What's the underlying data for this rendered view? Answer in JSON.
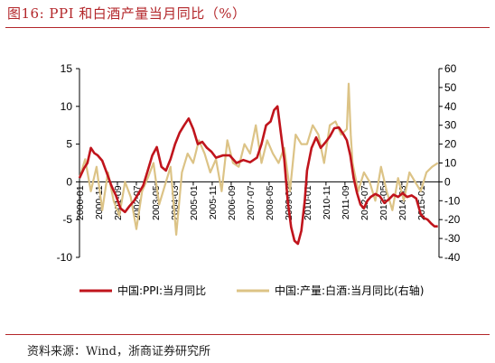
{
  "title": "图16:  PPI 和白酒产量当月同比（%）",
  "source": "资料来源：Wind，浙商证券研究所",
  "chart_data": {
    "type": "line",
    "left_axis": {
      "ylim": [
        -10,
        15
      ],
      "ticks": [
        "15",
        "10",
        "5",
        "0",
        "-5",
        "-10"
      ]
    },
    "right_axis": {
      "ylim": [
        -40,
        60
      ],
      "ticks": [
        "60",
        "50",
        "40",
        "30",
        "20",
        "10",
        "0",
        "-10",
        "-20",
        "-30",
        "-40"
      ]
    },
    "x_ticks": [
      "2000-01",
      "2000-11",
      "2001-09",
      "2002-07",
      "2003-05",
      "2004-03",
      "2005-01",
      "2005-11",
      "2006-09",
      "2007-07",
      "2008-05",
      "2009-03",
      "2010-01",
      "2010-11",
      "2011-09",
      "2012-07",
      "2013-05",
      "2014-03",
      "2015-01"
    ],
    "series": [
      {
        "name": "中国:PPI:当月同比",
        "axis": "left",
        "color": "#c0141c",
        "x": [
          2000.0,
          2000.2,
          2000.35,
          2000.5,
          2000.65,
          2000.8,
          2001.0,
          2001.2,
          2001.4,
          2001.6,
          2001.8,
          2002.0,
          2002.2,
          2002.4,
          2002.6,
          2002.8,
          2003.0,
          2003.2,
          2003.4,
          2003.6,
          2003.8,
          2004.0,
          2004.2,
          2004.4,
          2004.6,
          2004.8,
          2005.0,
          2005.2,
          2005.4,
          2005.6,
          2005.8,
          2006.0,
          2006.3,
          2006.6,
          2006.9,
          2007.2,
          2007.5,
          2007.8,
          2008.0,
          2008.2,
          2008.4,
          2008.55,
          2008.7,
          2008.85,
          2009.0,
          2009.15,
          2009.3,
          2009.45,
          2009.6,
          2009.75,
          2009.9,
          2010.0,
          2010.2,
          2010.4,
          2010.6,
          2010.8,
          2011.0,
          2011.2,
          2011.4,
          2011.6,
          2011.75,
          2011.9,
          2012.05,
          2012.2,
          2012.35,
          2012.5,
          2012.65,
          2012.8,
          2013.0,
          2013.2,
          2013.4,
          2013.6,
          2013.8,
          2014.0,
          2014.2,
          2014.4,
          2014.6,
          2014.8,
          2015.0,
          2015.15,
          2015.3,
          2015.45,
          2015.6,
          2015.75
        ],
        "y": [
          0.5,
          1.8,
          2.5,
          4.5,
          3.8,
          3.5,
          2.8,
          1.2,
          -0.5,
          -1.8,
          -3.5,
          -4.0,
          -3.2,
          -2.5,
          -1.5,
          -0.5,
          1.5,
          3.5,
          4.6,
          2.0,
          1.5,
          3.0,
          5.0,
          6.5,
          7.5,
          8.4,
          7.0,
          5.0,
          5.3,
          4.5,
          4.0,
          3.2,
          3.5,
          3.5,
          2.5,
          2.9,
          2.6,
          3.2,
          5.0,
          7.5,
          8.0,
          9.5,
          10.0,
          6.5,
          3.0,
          -2.5,
          -6.0,
          -7.8,
          -8.2,
          -6.5,
          -2.5,
          1.5,
          4.5,
          5.9,
          4.5,
          5.2,
          6.0,
          7.1,
          7.2,
          6.3,
          5.5,
          3.5,
          0.5,
          -1.5,
          -3.0,
          -3.5,
          -2.5,
          -2.0,
          -1.6,
          -1.9,
          -2.8,
          -2.3,
          -1.7,
          -2.0,
          -1.5,
          -2.0,
          -1.8,
          -2.2,
          -4.3,
          -4.8,
          -5.0,
          -5.5,
          -5.9,
          -5.9
        ]
      },
      {
        "name": "中国:产量:白酒:当月同比(右轴)",
        "axis": "right",
        "color": "#dcc386",
        "x": [
          2000.0,
          2000.25,
          2000.5,
          2000.75,
          2001.0,
          2001.25,
          2001.5,
          2001.75,
          2002.0,
          2002.25,
          2002.5,
          2002.75,
          2003.0,
          2003.25,
          2003.5,
          2003.75,
          2004.0,
          2004.25,
          2004.5,
          2004.75,
          2005.0,
          2005.25,
          2005.5,
          2005.75,
          2006.0,
          2006.25,
          2006.5,
          2006.75,
          2007.0,
          2007.25,
          2007.5,
          2007.75,
          2008.0,
          2008.25,
          2008.5,
          2008.75,
          2009.0,
          2009.25,
          2009.5,
          2009.75,
          2010.0,
          2010.25,
          2010.5,
          2010.75,
          2011.0,
          2011.25,
          2011.5,
          2011.75,
          2011.83,
          2011.92,
          2012.0,
          2012.25,
          2012.5,
          2012.75,
          2013.0,
          2013.25,
          2013.5,
          2013.75,
          2014.0,
          2014.25,
          2014.5,
          2014.75,
          2015.0,
          2015.25,
          2015.5,
          2015.75
        ],
        "y": [
          2,
          12,
          -5,
          8,
          -15,
          5,
          -10,
          -18,
          0,
          -8,
          -25,
          -5,
          2,
          10,
          -12,
          -2,
          8,
          -28,
          5,
          15,
          10,
          22,
          15,
          5,
          12,
          -5,
          22,
          10,
          8,
          20,
          15,
          30,
          10,
          22,
          15,
          10,
          18,
          -5,
          25,
          20,
          20,
          30,
          25,
          10,
          30,
          32,
          25,
          28,
          52,
          25,
          10,
          -5,
          5,
          0,
          -10,
          8,
          -5,
          -15,
          2,
          -10,
          5,
          0,
          -5,
          5,
          8,
          10
        ]
      }
    ]
  },
  "legend": [
    {
      "label": "中国:PPI:当月同比"
    },
    {
      "label": "中国:产量:白酒:当月同比(右轴)"
    }
  ]
}
